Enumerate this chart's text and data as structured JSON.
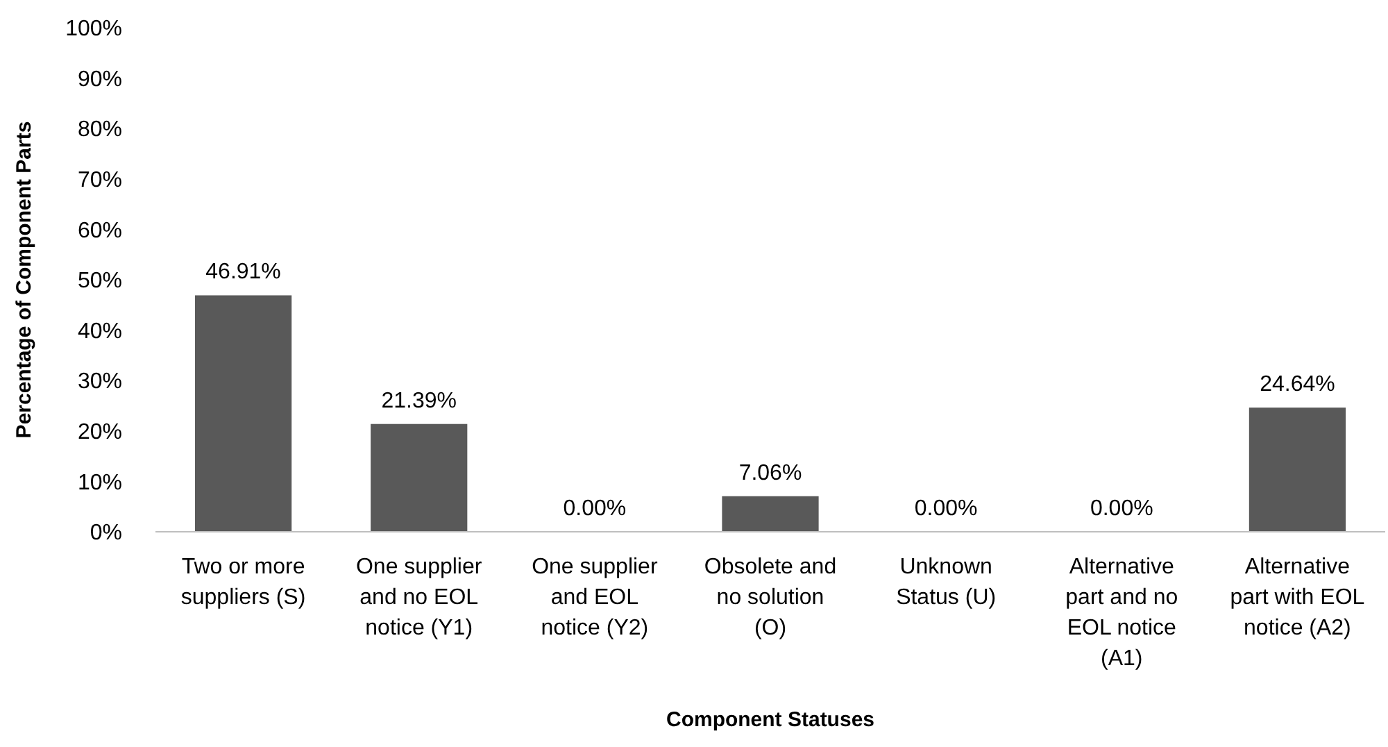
{
  "chart_data": {
    "type": "bar",
    "xlabel": "Component Statuses",
    "ylabel": "Percentage of Component Parts",
    "categories": [
      "Two or more suppliers (S)",
      "One supplier and no EOL notice (Y1)",
      "One supplier and EOL notice (Y2)",
      "Obsolete and no solution (O)",
      "Unknown Status (U)",
      "Alternative part and no EOL notice (A1)",
      "Alternative part with EOL notice (A2)"
    ],
    "values": [
      46.91,
      21.39,
      0,
      7.06,
      0,
      0,
      24.64
    ],
    "value_labels": [
      "46.91%",
      "21.39%",
      "0.00%",
      "7.06%",
      "0.00%",
      "0.00%",
      "24.64%"
    ],
    "color": "#595959",
    "ylim": [
      0,
      100
    ],
    "yticks": [
      {
        "value": 0,
        "label": "0%"
      },
      {
        "value": 10,
        "label": "10%"
      },
      {
        "value": 20,
        "label": "20%"
      },
      {
        "value": 30,
        "label": "30%"
      },
      {
        "value": 40,
        "label": "40%"
      },
      {
        "value": 50,
        "label": "50%"
      },
      {
        "value": 60,
        "label": "60%"
      },
      {
        "value": 70,
        "label": "70%"
      },
      {
        "value": 80,
        "label": "80%"
      },
      {
        "value": 90,
        "label": "90%"
      },
      {
        "value": 100,
        "label": "100%"
      }
    ],
    "grid": false
  }
}
